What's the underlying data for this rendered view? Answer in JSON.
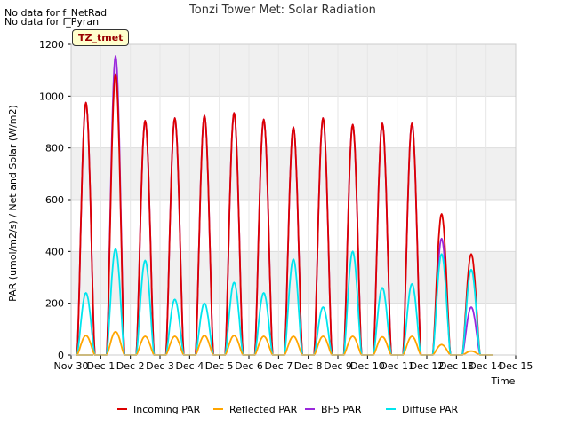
{
  "notes": [
    "No data for f_NetRad",
    "No data for f_Pyran"
  ],
  "tag_label": "TZ_tmet",
  "chart_data": {
    "type": "line",
    "title": "Tonzi Tower Met: Solar Radiation",
    "xlabel": "Time",
    "ylabel": "PAR (umol/m2/s) / Net and Solar (W/m2)",
    "ylim": [
      0,
      1200
    ],
    "yticks": [
      0,
      200,
      400,
      600,
      800,
      1000,
      1200
    ],
    "xlim": [
      0,
      15
    ],
    "xtick_labels": [
      "Nov 30",
      "Dec 1",
      "Dec 2",
      "Dec 3",
      "Dec 4",
      "Dec 5",
      "Dec 6",
      "Dec 7",
      "Dec 8",
      "Dec 9",
      "Dec 10",
      "Dec 11",
      "Dec 12",
      "Dec 13",
      "Dec 14",
      "Dec 15"
    ],
    "grid": true,
    "legend_position": "bottom",
    "day_peaks_x": [
      0.5,
      1.5,
      2.5,
      3.5,
      4.5,
      5.5,
      6.5,
      7.5,
      8.5,
      9.5,
      10.5,
      11.5,
      12.5,
      13.5
    ],
    "series": [
      {
        "name": "Incoming PAR",
        "color": "#dd0000",
        "peaks": [
          975,
          1085,
          905,
          915,
          925,
          935,
          910,
          880,
          915,
          890,
          895,
          895,
          545,
          390
        ]
      },
      {
        "name": "Reflected PAR",
        "color": "#ffa500",
        "peaks": [
          75,
          90,
          72,
          72,
          75,
          75,
          72,
          72,
          72,
          72,
          70,
          72,
          40,
          15
        ]
      },
      {
        "name": "BF5 PAR",
        "color": "#9a28dc",
        "peaks": [
          975,
          1155,
          905,
          915,
          925,
          935,
          910,
          880,
          915,
          890,
          895,
          895,
          450,
          185
        ]
      },
      {
        "name": "Diffuse PAR",
        "color": "#00e5ee",
        "peaks": [
          240,
          410,
          365,
          215,
          200,
          280,
          240,
          370,
          185,
          400,
          260,
          275,
          390,
          330
        ]
      }
    ]
  }
}
